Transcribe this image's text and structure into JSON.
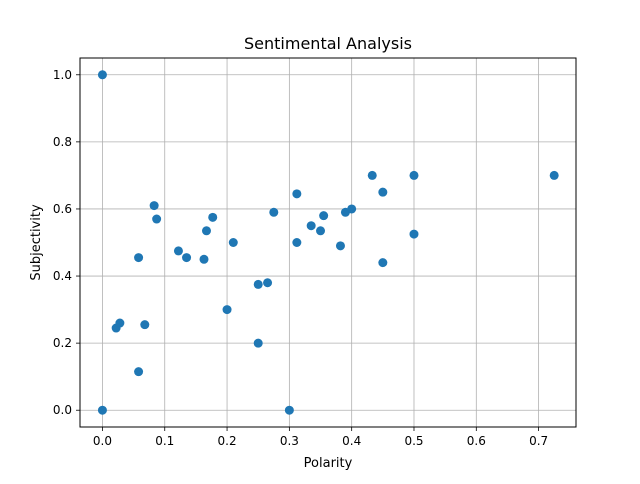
{
  "chart_data": {
    "type": "scatter",
    "title": "Sentimental Analysis",
    "xlabel": "Polarity",
    "ylabel": "Subjectivity",
    "xlim": [
      -0.036,
      0.76
    ],
    "ylim": [
      -0.05,
      1.05
    ],
    "xticks": [
      0.0,
      0.1,
      0.2,
      0.3,
      0.4,
      0.5,
      0.6,
      0.7
    ],
    "yticks": [
      0.0,
      0.2,
      0.4,
      0.6,
      0.8,
      1.0
    ],
    "xtick_labels": [
      "0.0",
      "0.1",
      "0.2",
      "0.3",
      "0.4",
      "0.5",
      "0.6",
      "0.7"
    ],
    "ytick_labels": [
      "0.0",
      "0.2",
      "0.4",
      "0.6",
      "0.8",
      "1.0"
    ],
    "grid": true,
    "marker_color": "#1f77b4",
    "points": [
      {
        "x": 0.0,
        "y": 1.0
      },
      {
        "x": 0.0,
        "y": 0.0
      },
      {
        "x": 0.022,
        "y": 0.245
      },
      {
        "x": 0.028,
        "y": 0.26
      },
      {
        "x": 0.058,
        "y": 0.455
      },
      {
        "x": 0.058,
        "y": 0.115
      },
      {
        "x": 0.068,
        "y": 0.255
      },
      {
        "x": 0.083,
        "y": 0.61
      },
      {
        "x": 0.087,
        "y": 0.57
      },
      {
        "x": 0.122,
        "y": 0.475
      },
      {
        "x": 0.135,
        "y": 0.455
      },
      {
        "x": 0.163,
        "y": 0.45
      },
      {
        "x": 0.167,
        "y": 0.535
      },
      {
        "x": 0.177,
        "y": 0.575
      },
      {
        "x": 0.2,
        "y": 0.3
      },
      {
        "x": 0.21,
        "y": 0.5
      },
      {
        "x": 0.25,
        "y": 0.375
      },
      {
        "x": 0.25,
        "y": 0.2
      },
      {
        "x": 0.265,
        "y": 0.38
      },
      {
        "x": 0.275,
        "y": 0.59
      },
      {
        "x": 0.3,
        "y": 0.0
      },
      {
        "x": 0.312,
        "y": 0.645
      },
      {
        "x": 0.312,
        "y": 0.5
      },
      {
        "x": 0.335,
        "y": 0.55
      },
      {
        "x": 0.35,
        "y": 0.535
      },
      {
        "x": 0.355,
        "y": 0.58
      },
      {
        "x": 0.382,
        "y": 0.49
      },
      {
        "x": 0.39,
        "y": 0.59
      },
      {
        "x": 0.4,
        "y": 0.6
      },
      {
        "x": 0.433,
        "y": 0.7
      },
      {
        "x": 0.45,
        "y": 0.65
      },
      {
        "x": 0.45,
        "y": 0.44
      },
      {
        "x": 0.5,
        "y": 0.7
      },
      {
        "x": 0.5,
        "y": 0.525
      },
      {
        "x": 0.725,
        "y": 0.7
      }
    ]
  }
}
